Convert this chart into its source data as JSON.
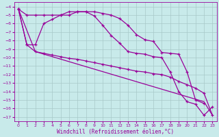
{
  "xlabel": "Windchill (Refroidissement éolien,°C)",
  "background_color": "#c8eaea",
  "grid_color": "#a8c8c8",
  "line_color": "#990099",
  "xlim": [
    -0.5,
    23.5
  ],
  "ylim": [
    -17.5,
    -3.5
  ],
  "yticks": [
    -4,
    -5,
    -6,
    -7,
    -8,
    -9,
    -10,
    -11,
    -12,
    -13,
    -14,
    -15,
    -16,
    -17
  ],
  "xticks": [
    0,
    1,
    2,
    3,
    4,
    5,
    6,
    7,
    8,
    9,
    10,
    11,
    12,
    13,
    14,
    15,
    16,
    17,
    18,
    19,
    20,
    21,
    22,
    23
  ],
  "line1_x": [
    0,
    1,
    2,
    3,
    4,
    5,
    6,
    7,
    8,
    9,
    10,
    11,
    12,
    13,
    14,
    15,
    16,
    17,
    18,
    19,
    20,
    21,
    22
  ],
  "line1_y": [
    -4.3,
    -5.0,
    -5.0,
    -5.0,
    -5.0,
    -5.0,
    -5.0,
    -4.6,
    -4.6,
    -4.6,
    -4.8,
    -5.0,
    -5.4,
    -6.2,
    -7.3,
    -7.9,
    -8.1,
    -9.4,
    -9.5,
    -9.6,
    -11.7,
    -15.0,
    -15.4
  ],
  "line2_x": [
    0,
    1,
    2,
    3,
    4,
    5,
    6,
    7,
    8,
    9,
    10,
    11,
    12,
    13,
    14,
    15,
    16,
    17,
    18,
    19,
    20,
    21,
    22,
    23
  ],
  "line2_y": [
    -4.3,
    -8.5,
    -8.5,
    -6.0,
    -5.5,
    -5.0,
    -4.6,
    -4.6,
    -4.6,
    -5.1,
    -6.2,
    -7.4,
    -8.3,
    -9.3,
    -9.5,
    -9.6,
    -9.9,
    -10.0,
    -11.7,
    -14.0,
    -15.2,
    -15.5,
    -16.8,
    -15.8
  ],
  "line3_x": [
    0,
    1,
    2,
    3,
    4,
    5,
    6,
    7,
    8,
    9,
    10,
    11,
    12,
    13,
    14,
    15,
    16,
    17,
    18,
    19,
    20,
    21,
    22,
    23
  ],
  "line3_y": [
    -4.3,
    -8.5,
    -9.3,
    -9.5,
    -9.7,
    -9.9,
    -10.1,
    -10.2,
    -10.4,
    -10.6,
    -10.8,
    -11.0,
    -11.2,
    -11.4,
    -11.6,
    -11.7,
    -11.9,
    -12.0,
    -12.3,
    -12.8,
    -13.2,
    -13.6,
    -14.2,
    -16.8
  ],
  "line4_x": [
    0,
    2,
    22,
    23
  ],
  "line4_y": [
    -4.3,
    -9.3,
    -15.2,
    -16.8
  ]
}
